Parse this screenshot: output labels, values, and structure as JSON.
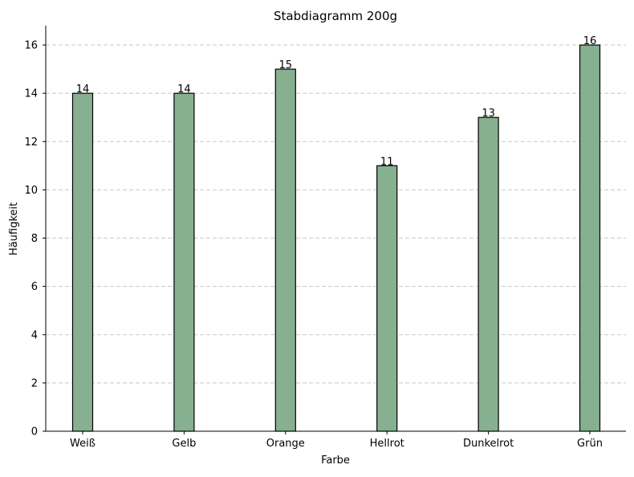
{
  "chart_data": {
    "type": "bar",
    "title": "Stabdiagramm 200g",
    "xlabel": "Farbe",
    "ylabel": "Häufigkeit",
    "categories": [
      "Weiß",
      "Gelb",
      "Orange",
      "Hellrot",
      "Dunkelrot",
      "Grün"
    ],
    "values": [
      14,
      14,
      15,
      11,
      13,
      16
    ],
    "ylim": [
      0,
      16.8
    ],
    "yticks": [
      0,
      2,
      4,
      6,
      8,
      10,
      12,
      14,
      16
    ],
    "grid": true,
    "data_labels": true,
    "colors": {
      "bar_fill": "#86b08f",
      "bar_edge": "#000000",
      "grid": "#c8c8c8"
    }
  }
}
